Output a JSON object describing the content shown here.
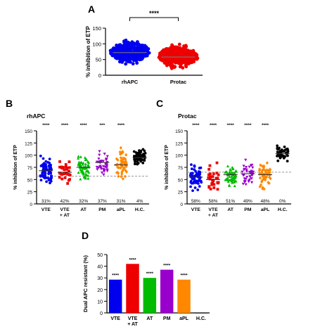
{
  "panels": {
    "A": "A",
    "B": "B",
    "C": "C",
    "D": "D"
  },
  "chart_data": [
    {
      "panel": "A",
      "type": "scatter",
      "ylabel": "% inhibition of ETP",
      "yticks": [
        0,
        50,
        100,
        150
      ],
      "ylim": [
        0,
        150
      ],
      "categories": [
        "rhAPC",
        "Protac"
      ],
      "colors": [
        "#0000ee",
        "#ee0000"
      ],
      "medians": [
        72,
        58
      ],
      "spread": [
        {
          "min": 0,
          "max": 125,
          "center": 75
        },
        {
          "min": 0,
          "max": 128,
          "center": 60
        }
      ],
      "significance": "****",
      "grid": false
    },
    {
      "panel": "B",
      "type": "scatter",
      "title": "rhAPC",
      "ylabel": "% inhibition of ETP",
      "yticks": [
        0,
        25,
        50,
        75,
        100,
        125,
        150
      ],
      "ylim": [
        0,
        150
      ],
      "categories": [
        "VTE",
        "VTE\n+ AT",
        "AT",
        "PM",
        "aPL",
        "H.C."
      ],
      "category_lines": [
        [
          "VTE"
        ],
        [
          "VTE",
          "+ AT"
        ],
        [
          "AT"
        ],
        [
          "PM"
        ],
        [
          "aPL"
        ],
        [
          "H.C."
        ]
      ],
      "colors": [
        "#0000ee",
        "#ee0000",
        "#00bb00",
        "#9900cc",
        "#ff8800",
        "#000000"
      ],
      "markers": [
        "circle",
        "square",
        "triangle-up",
        "triangle-down",
        "diamond",
        "circle"
      ],
      "medians": [
        68,
        65,
        75,
        85,
        80,
        95
      ],
      "significance": [
        "****",
        "****",
        "****",
        "***",
        "****",
        ""
      ],
      "percent_labels": [
        "31%",
        "42%",
        "32%",
        "37%",
        "31%",
        "4%"
      ],
      "threshold": 57,
      "grid": false
    },
    {
      "panel": "C",
      "type": "scatter",
      "title": "Protac",
      "ylabel": "% inhibition of ETP",
      "yticks": [
        0,
        25,
        50,
        75,
        100,
        125,
        150
      ],
      "ylim": [
        0,
        150
      ],
      "categories": [
        "VTE",
        "VTE\n+ AT",
        "AT",
        "PM",
        "aPL",
        "H.C."
      ],
      "category_lines": [
        [
          "VTE"
        ],
        [
          "VTE",
          "+ AT"
        ],
        [
          "AT"
        ],
        [
          "PM"
        ],
        [
          "aPL"
        ],
        [
          "H.C."
        ]
      ],
      "colors": [
        "#0000ee",
        "#ee0000",
        "#00bb00",
        "#9900cc",
        "#ff8800",
        "#000000"
      ],
      "markers": [
        "circle",
        "square",
        "triangle-up",
        "triangle-down",
        "diamond",
        "circle"
      ],
      "medians": [
        55,
        50,
        60,
        62,
        60,
        103
      ],
      "significance": [
        "****",
        "****",
        "****",
        "****",
        "****",
        ""
      ],
      "percent_labels": [
        "58%",
        "58%",
        "51%",
        "49%",
        "48%",
        "0%"
      ],
      "threshold": 65,
      "grid": false
    },
    {
      "panel": "D",
      "type": "bar",
      "ylabel": "Dual APC resistant (%)",
      "yticks": [
        0,
        10,
        20,
        30,
        40,
        50
      ],
      "ylim": [
        0,
        50
      ],
      "categories": [
        "VTE",
        "VTE\n+ AT",
        "AT",
        "PM",
        "aPL",
        "H.C."
      ],
      "category_lines": [
        [
          "VTE"
        ],
        [
          "VTE",
          "+ AT"
        ],
        [
          "AT"
        ],
        [
          "PM"
        ],
        [
          "aPL"
        ],
        [
          "H.C."
        ]
      ],
      "values": [
        28.5,
        42,
        30,
        37,
        28.5,
        0
      ],
      "colors": [
        "#0000ee",
        "#ee0000",
        "#00bb00",
        "#9900cc",
        "#ff8800",
        "#000000"
      ],
      "significance": [
        "****",
        "****",
        "****",
        "****",
        "****",
        ""
      ],
      "grid": false
    }
  ]
}
